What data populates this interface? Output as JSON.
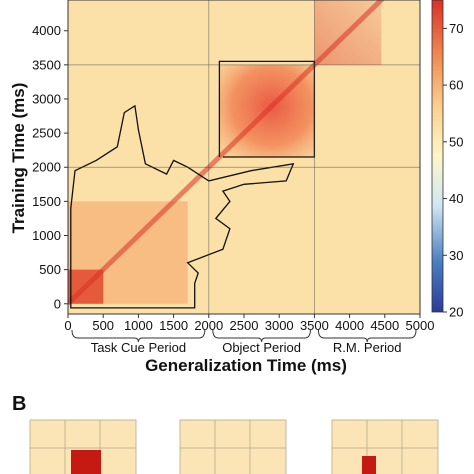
{
  "chart_data": {
    "type": "heatmap",
    "xlabel": "Generalization Time (ms)",
    "ylabel": "Training Time (ms)",
    "xlim": [
      0,
      5000
    ],
    "ylim": [
      -150,
      4450
    ],
    "x_ticks": [
      "0",
      "500",
      "1000",
      "1500",
      "2000",
      "2500",
      "3000",
      "3500",
      "4000",
      "4500",
      "5000"
    ],
    "y_ticks": [
      "0",
      "500",
      "1000",
      "1500",
      "2000",
      "2500",
      "3000",
      "3500",
      "4000"
    ],
    "periods": [
      {
        "label": "Task Cue Period",
        "start": 0,
        "end": 2000
      },
      {
        "label": "Object Period",
        "start": 2000,
        "end": 3500
      },
      {
        "label": "R.M. Period",
        "start": 3500,
        "end": 5000
      }
    ],
    "period_boundaries": [
      2000,
      3500
    ],
    "colorbar": {
      "ticks": [
        "20",
        "30",
        "40",
        "50",
        "60",
        "70"
      ],
      "range": [
        20,
        75
      ],
      "colors": [
        "#2b3a9a",
        "#4a7ec0",
        "#cfe6f2",
        "#fff6c8",
        "#fbcf8e",
        "#f08a52",
        "#d93125"
      ]
    },
    "regions": [
      {
        "name": "task-cue-diagonal",
        "x": [
          0,
          500
        ],
        "y": [
          0,
          500
        ],
        "value": 68
      },
      {
        "name": "task-cue-block",
        "x": [
          0,
          1700
        ],
        "y": [
          0,
          1500
        ],
        "value": 58
      },
      {
        "name": "object-block",
        "x": [
          2150,
          3500
        ],
        "y": [
          2150,
          3500
        ],
        "value": 66
      },
      {
        "name": "rm-diagonal",
        "x": [
          3500,
          4450
        ],
        "y": [
          3500,
          4450
        ],
        "value": 64
      },
      {
        "name": "background",
        "value": 52
      }
    ]
  },
  "panel_b": {
    "label": "B"
  }
}
